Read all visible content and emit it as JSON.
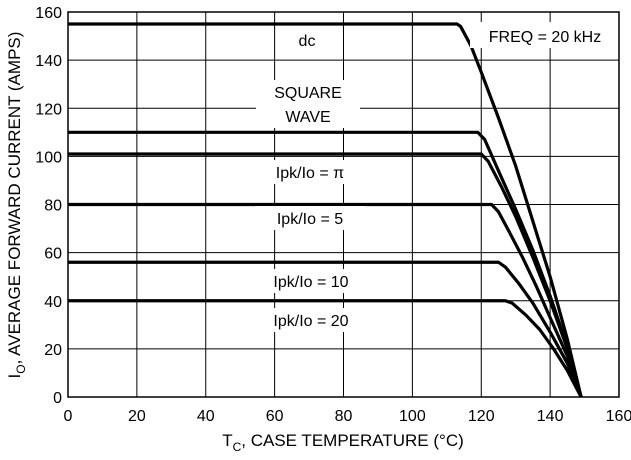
{
  "chart_data": {
    "type": "line",
    "xlabel_main": "T",
    "xlabel_sub": "C",
    "xlabel_rest": ", CASE TEMPERATURE (°C)",
    "ylabel_main": "I",
    "ylabel_sub": "O",
    "ylabel_rest": ", AVERAGE FORWARD CURRENT (AMPS)",
    "xlim": [
      0,
      160
    ],
    "ylim": [
      0,
      160
    ],
    "x_ticks": [
      "0",
      "20",
      "40",
      "60",
      "80",
      "100",
      "120",
      "140",
      "160"
    ],
    "y_ticks": [
      "0",
      "20",
      "40",
      "60",
      "80",
      "100",
      "120",
      "140",
      "160"
    ],
    "grid": true,
    "annotation": "FREQ = 20 kHz",
    "series": [
      {
        "name": "dc",
        "points": [
          [
            0,
            155
          ],
          [
            113,
            155
          ],
          [
            114,
            154
          ],
          [
            117,
            146
          ],
          [
            120,
            135
          ],
          [
            125,
            116
          ],
          [
            130,
            96
          ],
          [
            135,
            73
          ],
          [
            140,
            50
          ],
          [
            145,
            24
          ],
          [
            149,
            0
          ]
        ]
      },
      {
        "name": "SQUARE WAVE",
        "points": [
          [
            0,
            110
          ],
          [
            119,
            110
          ],
          [
            121,
            107
          ],
          [
            125,
            94
          ],
          [
            130,
            78
          ],
          [
            135,
            61
          ],
          [
            140,
            42
          ],
          [
            145,
            21
          ],
          [
            149,
            0
          ]
        ]
      },
      {
        "name": "Ipk/Io = π",
        "points": [
          [
            0,
            101
          ],
          [
            120,
            101
          ],
          [
            122,
            98
          ],
          [
            126,
            87
          ],
          [
            130,
            75
          ],
          [
            135,
            58
          ],
          [
            140,
            40
          ],
          [
            145,
            20
          ],
          [
            149,
            0
          ]
        ]
      },
      {
        "name": "Ipk/Io = 5",
        "points": [
          [
            0,
            80
          ],
          [
            123,
            80
          ],
          [
            125,
            77
          ],
          [
            128,
            69
          ],
          [
            132,
            58
          ],
          [
            136,
            46
          ],
          [
            140,
            33
          ],
          [
            145,
            17
          ],
          [
            149,
            0
          ]
        ]
      },
      {
        "name": "Ipk/Io = 10",
        "points": [
          [
            0,
            56
          ],
          [
            125,
            56
          ],
          [
            127,
            54
          ],
          [
            131,
            47
          ],
          [
            135,
            39
          ],
          [
            140,
            27
          ],
          [
            145,
            14
          ],
          [
            149,
            0
          ]
        ]
      },
      {
        "name": "Ipk/Io = 20",
        "points": [
          [
            0,
            40
          ],
          [
            127,
            40
          ],
          [
            129,
            39
          ],
          [
            133,
            34
          ],
          [
            137,
            28
          ],
          [
            141,
            20
          ],
          [
            145,
            11
          ],
          [
            149,
            0
          ]
        ]
      }
    ],
    "labels": {
      "dc": "dc",
      "square_line1": "SQUARE",
      "square_line2": "WAVE",
      "pi": "Ipk/Io = π",
      "five": "Ipk/Io = 5",
      "ten": "Ipk/Io = 10",
      "twenty": "Ipk/Io = 20"
    }
  }
}
